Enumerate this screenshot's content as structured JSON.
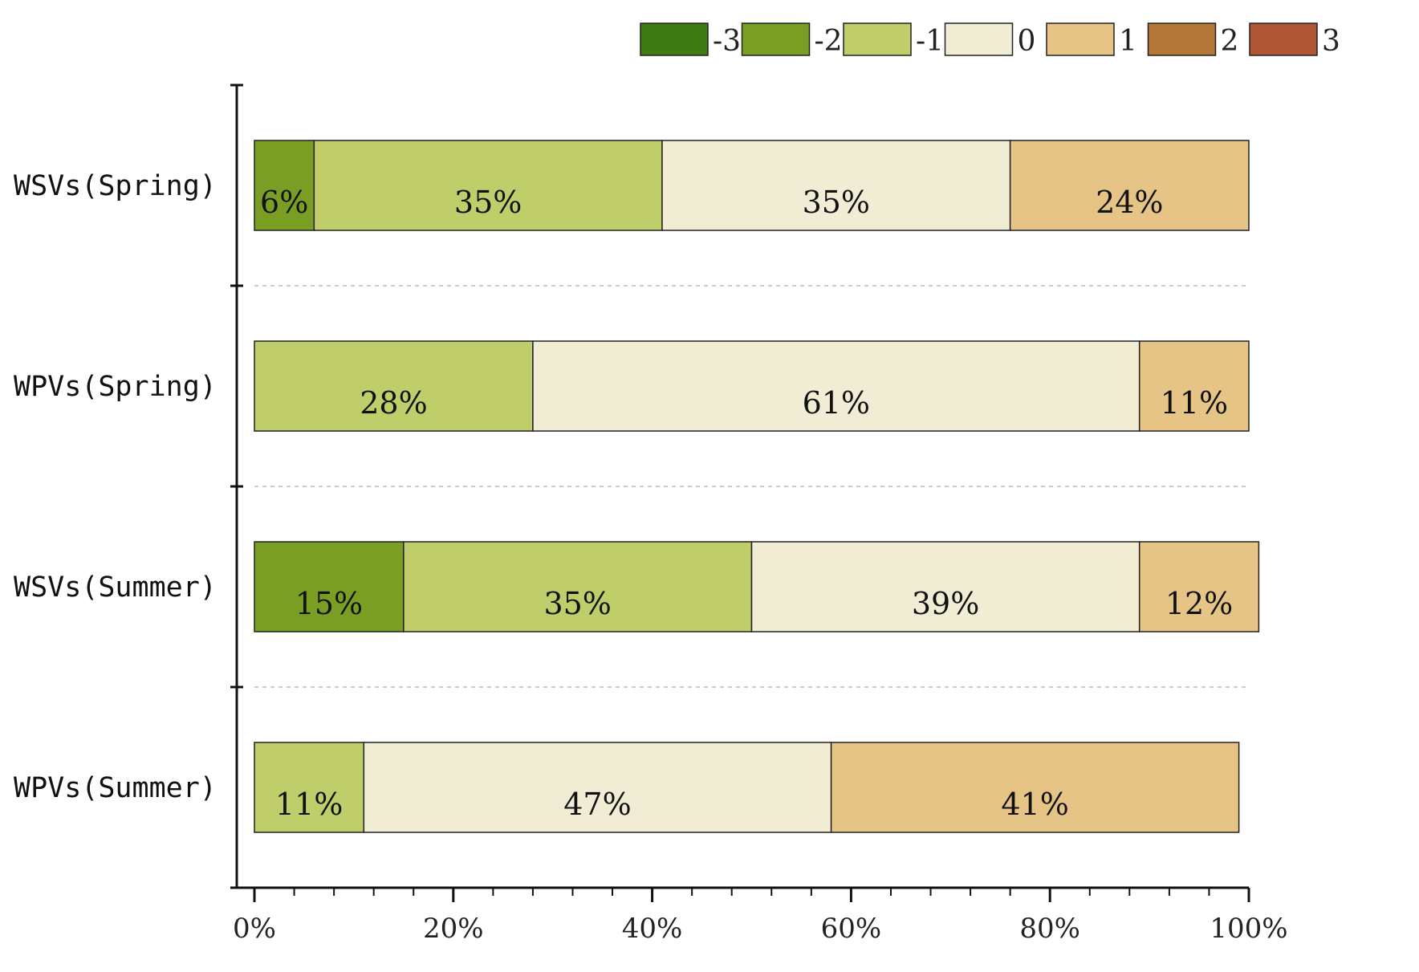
{
  "chart_data": {
    "type": "bar",
    "orientation": "horizontal",
    "stacked": true,
    "percent": true,
    "categories": [
      "WSVs(Spring)",
      "WPVs(Spring)",
      "WSVs(Summer)",
      "WPVs(Summer)"
    ],
    "series": [
      {
        "name": "-3",
        "color": "#3f7a12",
        "values": [
          0,
          0,
          0,
          0
        ],
        "labels": [
          "",
          "",
          "",
          ""
        ]
      },
      {
        "name": "-2",
        "color": "#7a9e24",
        "values": [
          6,
          0,
          15,
          0
        ],
        "labels": [
          "6%",
          "",
          "15%",
          ""
        ]
      },
      {
        "name": "-1",
        "color": "#bfcd6a",
        "values": [
          35,
          28,
          35,
          11
        ],
        "labels": [
          "35%",
          "28%",
          "35%",
          "11%"
        ]
      },
      {
        "name": "0",
        "color": "#f1edd5",
        "values": [
          35,
          61,
          39,
          47
        ],
        "labels": [
          "35%",
          "61%",
          "39%",
          "47%"
        ]
      },
      {
        "name": "1",
        "color": "#e6c485",
        "values": [
          24,
          11,
          12,
          41
        ],
        "labels": [
          "24%",
          "11%",
          "12%",
          "41%"
        ]
      },
      {
        "name": "2",
        "color": "#b37737",
        "values": [
          0,
          0,
          0,
          0
        ],
        "labels": [
          "",
          "",
          "",
          ""
        ]
      },
      {
        "name": "3",
        "color": "#b05536",
        "values": [
          0,
          0,
          0,
          0
        ],
        "labels": [
          "",
          "",
          "",
          ""
        ]
      }
    ],
    "xlim": [
      0,
      100
    ],
    "x_ticks": [
      "0%",
      "20%",
      "40%",
      "60%",
      "80%",
      "100%"
    ],
    "legend_position": "top",
    "grid": false
  }
}
